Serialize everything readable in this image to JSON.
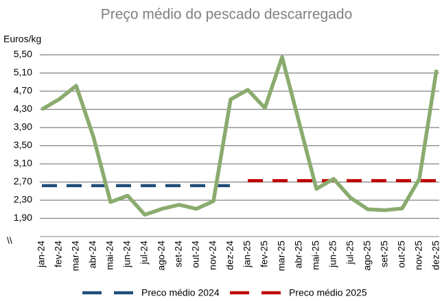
{
  "chart_data": {
    "type": "line",
    "title": "Preço médio do pescado descarregado",
    "y_label": "Euros/kg",
    "axis_break": "\\\\",
    "categories": [
      "jan-24",
      "fev-24",
      "mar-24",
      "abr-24",
      "mai-24",
      "jun-24",
      "jul-24",
      "ago-24",
      "set-24",
      "out-24",
      "nov-24",
      "dez-24",
      "jan-25",
      "fev-25",
      "mar-25",
      "abr-25",
      "mai-25",
      "jun-25",
      "jul-25",
      "ago-25",
      "set-25",
      "out-25",
      "nov-25",
      "dez-25"
    ],
    "values": [
      4.3,
      4.52,
      4.82,
      3.7,
      2.26,
      2.4,
      1.98,
      2.11,
      2.2,
      2.11,
      2.28,
      4.52,
      4.73,
      4.33,
      5.45,
      4.0,
      2.55,
      2.77,
      2.35,
      2.1,
      2.08,
      2.12,
      2.77,
      5.17
    ],
    "color": "#8aab6e",
    "series": [
      {
        "name": "Preco médio 2024",
        "color": "#1f4e79",
        "dashed": true,
        "values": [
          2.62,
          2.62,
          2.62,
          2.62,
          2.62,
          2.62,
          2.62,
          2.62,
          2.62,
          2.62,
          2.62,
          2.62,
          null,
          null,
          null,
          null,
          null,
          null,
          null,
          null,
          null,
          null,
          null,
          null
        ]
      },
      {
        "name": "Preco médio 2025",
        "color": "#c00000",
        "dashed": true,
        "values": [
          null,
          null,
          null,
          null,
          null,
          null,
          null,
          null,
          null,
          null,
          null,
          null,
          2.73,
          2.73,
          2.73,
          2.73,
          2.73,
          2.73,
          2.73,
          2.73,
          2.73,
          2.73,
          2.73,
          2.73
        ]
      }
    ],
    "ylim": [
      1.5,
      5.5
    ],
    "yticks": [
      {
        "value": 1.9,
        "label": "1,90"
      },
      {
        "value": 2.3,
        "label": "2,30"
      },
      {
        "value": 2.7,
        "label": "2,70"
      },
      {
        "value": 3.1,
        "label": "3,10"
      },
      {
        "value": 3.5,
        "label": "3,50"
      },
      {
        "value": 3.9,
        "label": "3,90"
      },
      {
        "value": 4.3,
        "label": "4,30"
      },
      {
        "value": 4.7,
        "label": "4,70"
      },
      {
        "value": 5.1,
        "label": "5,10"
      },
      {
        "value": 5.5,
        "label": "5,50"
      }
    ],
    "grid": true
  }
}
